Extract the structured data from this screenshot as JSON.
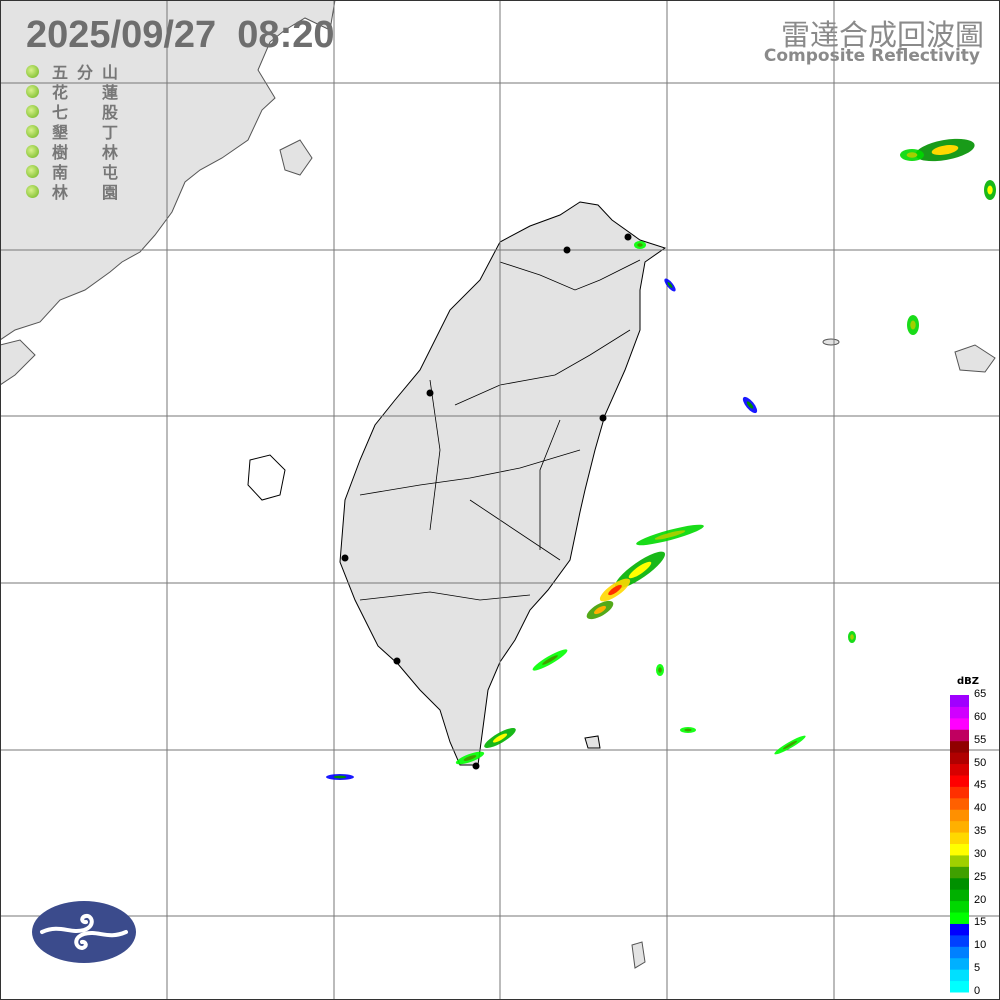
{
  "header": {
    "timestamp": "2025/09/27  08:20",
    "title_zh": "雷達合成回波圖",
    "title_en": "Composite Reflectivity"
  },
  "stations": [
    {
      "name": [
        "五",
        "分",
        "山"
      ]
    },
    {
      "name": [
        "花",
        "",
        "蓮"
      ]
    },
    {
      "name": [
        "七",
        "",
        "股"
      ]
    },
    {
      "name": [
        "墾",
        "",
        "丁"
      ]
    },
    {
      "name": [
        "樹",
        "",
        "林"
      ]
    },
    {
      "name": [
        "南",
        "",
        "屯"
      ]
    },
    {
      "name": [
        "林",
        "",
        "園"
      ]
    }
  ],
  "station_status_color": "#8cc63e",
  "colorbar": {
    "unit": "dBZ",
    "ticks": [
      "65",
      "60",
      "55",
      "50",
      "45",
      "40",
      "35",
      "30",
      "25",
      "20",
      "15",
      "10",
      "5",
      "0"
    ],
    "colors": [
      "#00ffff",
      "#00e0ff",
      "#00b0ff",
      "#0080ff",
      "#0040ff",
      "#0000ff",
      "#00ff00",
      "#00d800",
      "#00b000",
      "#009000",
      "#40a000",
      "#a0d000",
      "#ffff00",
      "#ffd800",
      "#ffb000",
      "#ff9000",
      "#ff6000",
      "#ff3000",
      "#ff0000",
      "#d80000",
      "#b00000",
      "#900000",
      "#c00060",
      "#ff00ff",
      "#d000ff",
      "#a000ff"
    ]
  },
  "colors": {
    "land": "#e3e3e3",
    "grid": "#777777",
    "logo": "#3b4b8c"
  }
}
